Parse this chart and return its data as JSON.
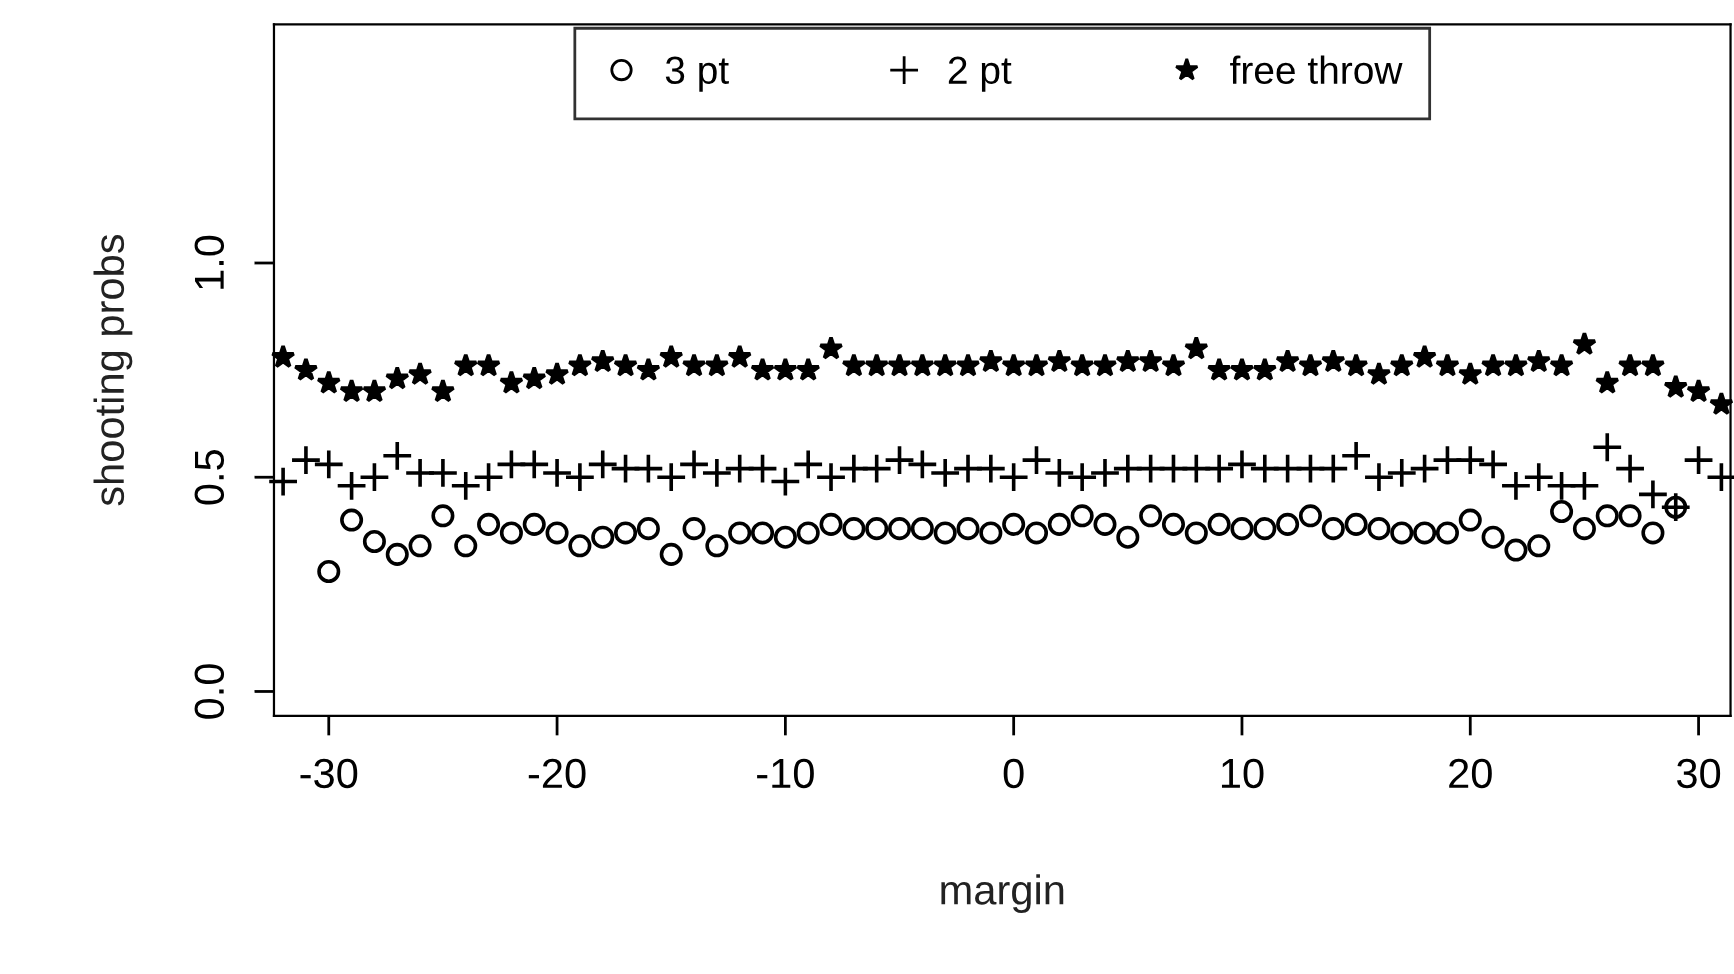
{
  "chart_data": {
    "type": "scatter",
    "xlabel": "margin",
    "ylabel": "shooting probs",
    "x": [
      -32,
      -31,
      -30,
      -29,
      -28,
      -27,
      -26,
      -25,
      -24,
      -23,
      -22,
      -21,
      -20,
      -19,
      -18,
      -17,
      -16,
      -15,
      -14,
      -13,
      -12,
      -11,
      -10,
      -9,
      -8,
      -7,
      -6,
      -5,
      -4,
      -3,
      -2,
      -1,
      0,
      1,
      2,
      3,
      4,
      5,
      6,
      7,
      8,
      9,
      10,
      11,
      12,
      13,
      14,
      15,
      16,
      17,
      18,
      19,
      20,
      21,
      22,
      23,
      24,
      25,
      26,
      27,
      28,
      29,
      30,
      31
    ],
    "series": [
      {
        "name": "3 pt",
        "color": "#000000",
        "marker": "circle",
        "values": [
          null,
          null,
          0.28,
          0.4,
          0.35,
          0.32,
          0.34,
          0.41,
          0.34,
          0.39,
          0.37,
          0.39,
          0.37,
          0.34,
          0.36,
          0.37,
          0.38,
          0.32,
          0.38,
          0.34,
          0.37,
          0.37,
          0.36,
          0.37,
          0.39,
          0.38,
          0.38,
          0.38,
          0.38,
          0.37,
          0.38,
          0.37,
          0.39,
          0.37,
          0.39,
          0.41,
          0.39,
          0.36,
          0.41,
          0.39,
          0.37,
          0.39,
          0.38,
          0.38,
          0.39,
          0.41,
          0.38,
          0.39,
          0.38,
          0.37,
          0.37,
          0.37,
          0.4,
          0.36,
          0.33,
          0.34,
          0.42,
          0.38,
          0.41,
          0.41,
          0.37,
          0.43,
          null,
          null
        ]
      },
      {
        "name": "2 pt",
        "color": "#000000",
        "marker": "cross",
        "values": [
          0.49,
          0.54,
          0.53,
          0.48,
          0.5,
          0.55,
          0.51,
          0.51,
          0.48,
          0.5,
          0.53,
          0.53,
          0.51,
          0.5,
          0.53,
          0.52,
          0.52,
          0.5,
          0.53,
          0.51,
          0.52,
          0.52,
          0.49,
          0.53,
          0.5,
          0.52,
          0.52,
          0.54,
          0.53,
          0.51,
          0.52,
          0.52,
          0.5,
          0.54,
          0.51,
          0.5,
          0.51,
          0.52,
          0.52,
          0.52,
          0.52,
          0.52,
          0.53,
          0.52,
          0.52,
          0.52,
          0.52,
          0.55,
          0.5,
          0.51,
          0.52,
          0.54,
          0.54,
          0.53,
          0.48,
          0.5,
          0.48,
          0.48,
          0.57,
          0.52,
          0.46,
          0.43,
          0.54,
          0.5
        ]
      },
      {
        "name": "free throw",
        "color": "#000000",
        "marker": "star",
        "values": [
          0.78,
          0.75,
          0.72,
          0.7,
          0.7,
          0.73,
          0.74,
          0.7,
          0.76,
          0.76,
          0.72,
          0.73,
          0.74,
          0.76,
          0.77,
          0.76,
          0.75,
          0.78,
          0.76,
          0.76,
          0.78,
          0.75,
          0.75,
          0.75,
          0.8,
          0.76,
          0.76,
          0.76,
          0.76,
          0.76,
          0.76,
          0.77,
          0.76,
          0.76,
          0.77,
          0.76,
          0.76,
          0.77,
          0.77,
          0.76,
          0.8,
          0.75,
          0.75,
          0.75,
          0.77,
          0.76,
          0.77,
          0.76,
          0.74,
          0.76,
          0.78,
          0.76,
          0.74,
          0.76,
          0.76,
          0.77,
          0.76,
          0.81,
          0.72,
          0.76,
          0.76,
          0.71,
          0.7,
          0.67
        ]
      }
    ],
    "xlim": [
      -32.4,
      31.4
    ],
    "ylim": [
      -0.057,
      1.557
    ],
    "xticks": [
      -30,
      -20,
      -10,
      0,
      10,
      20,
      30
    ],
    "yticks": [
      {
        "value": 0,
        "label": "0.0"
      },
      {
        "value": 0.5,
        "label": "0.5"
      },
      {
        "value": 1,
        "label": "1.0"
      }
    ],
    "grid": false,
    "legend": "top"
  }
}
